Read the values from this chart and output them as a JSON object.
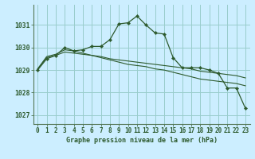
{
  "title": "Graphe pression niveau de la mer (hPa)",
  "background_color": "#cceeff",
  "grid_color": "#99cccc",
  "line_color": "#2d5a2d",
  "x_labels": [
    "0",
    "1",
    "2",
    "3",
    "4",
    "5",
    "6",
    "7",
    "8",
    "9",
    "10",
    "11",
    "12",
    "13",
    "14",
    "15",
    "16",
    "17",
    "18",
    "19",
    "20",
    "21",
    "22",
    "23"
  ],
  "ylim": [
    1026.6,
    1031.9
  ],
  "yticks": [
    1027,
    1028,
    1029,
    1030,
    1031
  ],
  "line1": [
    1029.0,
    1029.5,
    1029.65,
    1030.0,
    1029.85,
    1029.9,
    1030.05,
    1030.05,
    1030.35,
    1031.05,
    1031.1,
    1031.4,
    1031.0,
    1030.65,
    1030.6,
    1029.55,
    1029.1,
    1029.1,
    1029.1,
    1029.0,
    1028.85,
    1028.2,
    1028.2,
    1027.3
  ],
  "line2": [
    1029.05,
    1029.6,
    1029.7,
    1029.9,
    1029.85,
    1029.75,
    1029.65,
    1029.55,
    1029.45,
    1029.35,
    1029.25,
    1029.2,
    1029.15,
    1029.05,
    1029.0,
    1028.9,
    1028.8,
    1028.7,
    1028.6,
    1028.55,
    1028.5,
    1028.45,
    1028.4,
    1028.3
  ],
  "line3": [
    1029.05,
    1029.55,
    1029.65,
    1029.8,
    1029.75,
    1029.7,
    1029.65,
    1029.6,
    1029.5,
    1029.45,
    1029.4,
    1029.35,
    1029.3,
    1029.25,
    1029.2,
    1029.15,
    1029.1,
    1029.05,
    1028.95,
    1028.9,
    1028.85,
    1028.8,
    1028.75,
    1028.65
  ],
  "title_fontsize": 6.0,
  "tick_fontsize": 5.5,
  "ytick_fontsize": 5.8
}
